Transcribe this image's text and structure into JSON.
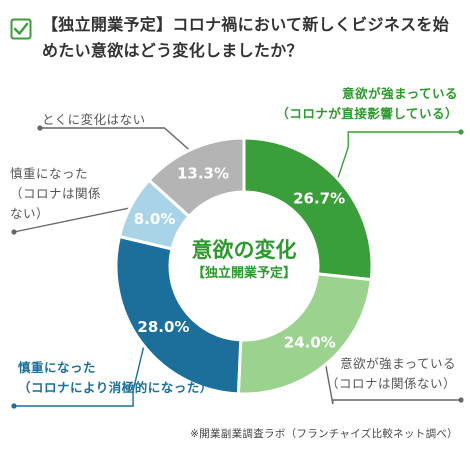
{
  "header": {
    "title": "【独立開業予定】コロナ禍において新しくビジネスを始めたい意欲はどう変化しましたか？"
  },
  "center": {
    "main": "意欲の変化",
    "sub": "【独立開業予定】"
  },
  "chart_data": {
    "type": "pie",
    "categories": [
      "意欲が強まっている（コロナが直接影響している）",
      "意欲が強まっている（コロナは関係ない）",
      "慎重になった（コロナにより消極的になった）",
      "慎重になった（コロナは関係ない）",
      "とくに変化はない"
    ],
    "values": [
      26.7,
      24.0,
      28.0,
      8.0,
      13.3
    ],
    "value_labels": [
      "26.7%",
      "24.0%",
      "28.0%",
      "8.0%",
      "13.3%"
    ],
    "colors": [
      "#3a9e3a",
      "#9bd28e",
      "#1b6f9a",
      "#a9d3e6",
      "#b4b4b4"
    ],
    "donut": true
  },
  "labels": {
    "green1": [
      "意欲が強まっている",
      "（コロナが直接影響している）"
    ],
    "green2": [
      "意欲が強まっている",
      "（コロナは関係ない）"
    ],
    "blue1": [
      "慎重になった",
      "（コロナにより消極的になった）"
    ],
    "blue2": [
      "慎重になった",
      "（コロナは関係",
      "ない）"
    ],
    "grey": [
      "とくに変化はない"
    ]
  },
  "footnote": "※開業副業調査ラボ（フランチャイズ比較ネット調べ）"
}
